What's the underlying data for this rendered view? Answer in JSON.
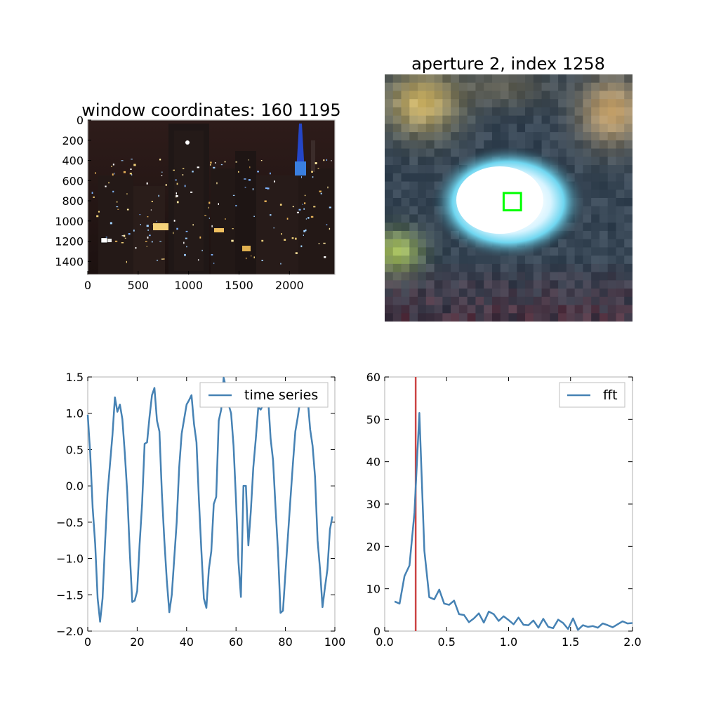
{
  "colors": {
    "line": "#4682b4",
    "marker_line": "#cc4444",
    "aperture_box": "#00ff00",
    "axes_frame": "#bfbfbf"
  },
  "chart_data": [
    {
      "type": "image",
      "title": "window coordinates: 160 1195",
      "xlim": [
        0,
        2450
      ],
      "ylim": [
        1530,
        0
      ],
      "xticks": [
        0,
        500,
        1000,
        1500,
        2000
      ],
      "yticks": [
        0,
        200,
        400,
        600,
        800,
        1000,
        1200,
        1400
      ],
      "marker": {
        "x": 160,
        "y": 1195
      }
    },
    {
      "type": "image",
      "title": "aperture 2, index 1258",
      "aperture_box": {
        "x": 0.48,
        "y": 0.48,
        "w": 0.07,
        "h": 0.07
      }
    },
    {
      "type": "line",
      "xlim": [
        0,
        100
      ],
      "ylim": [
        -2.0,
        1.5
      ],
      "xticks": [
        0,
        20,
        40,
        60,
        80,
        100
      ],
      "yticks": [
        -2.0,
        -1.5,
        -1.0,
        -0.5,
        0.0,
        0.5,
        1.0,
        1.5
      ],
      "tick_labels_x": [
        "0",
        "20",
        "40",
        "60",
        "80",
        "100"
      ],
      "tick_labels_y": [
        "−2.0",
        "−1.5",
        "−1.0",
        "−0.5",
        "0.0",
        "0.5",
        "1.0",
        "1.5"
      ],
      "legend": "upper-right",
      "series": [
        {
          "name": "time series",
          "x": [
            0,
            1,
            2,
            3,
            4,
            5,
            6,
            7,
            8,
            9,
            10,
            11,
            12,
            13,
            14,
            15,
            16,
            17,
            18,
            19,
            20,
            21,
            22,
            23,
            24,
            25,
            26,
            27,
            28,
            29,
            30,
            31,
            32,
            33,
            34,
            35,
            36,
            37,
            38,
            39,
            40,
            41,
            42,
            43,
            44,
            45,
            46,
            47,
            48,
            49,
            50,
            51,
            52,
            53,
            54,
            55,
            56,
            57,
            58,
            59,
            60,
            61,
            62,
            63,
            64,
            65,
            66,
            67,
            68,
            69,
            70,
            71,
            72,
            73,
            74,
            75,
            76,
            77,
            78,
            79,
            80,
            81,
            82,
            83,
            84,
            85,
            86,
            87,
            88,
            89,
            90,
            91,
            92,
            93,
            94,
            95,
            96,
            97,
            98,
            99
          ],
          "y": [
            0.98,
            0.45,
            -0.3,
            -0.8,
            -1.55,
            -1.87,
            -1.55,
            -0.8,
            -0.1,
            0.3,
            0.7,
            1.22,
            1.02,
            1.12,
            0.92,
            0.45,
            -0.1,
            -0.9,
            -1.6,
            -1.58,
            -1.45,
            -0.8,
            -0.25,
            0.58,
            0.6,
            0.95,
            1.25,
            1.35,
            0.9,
            0.75,
            -0.1,
            -0.75,
            -1.3,
            -1.74,
            -1.5,
            -1.0,
            -0.5,
            0.25,
            0.72,
            0.92,
            1.12,
            1.18,
            1.25,
            0.85,
            0.6,
            -0.2,
            -0.9,
            -1.55,
            -1.68,
            -1.15,
            -0.9,
            -0.25,
            -0.15,
            0.9,
            1.05,
            1.49,
            1.35,
            1.12,
            1.0,
            0.55,
            -0.2,
            -1.05,
            -1.53,
            0.0,
            0.0,
            -0.82,
            -0.35,
            0.25,
            0.65,
            1.08,
            1.05,
            1.12,
            1.18,
            1.2,
            0.65,
            0.35,
            -0.3,
            -0.9,
            -1.75,
            -1.72,
            -1.2,
            -0.7,
            -0.2,
            0.3,
            0.75,
            0.95,
            1.18,
            1.25,
            1.23,
            1.2,
            0.78,
            0.55,
            0.12,
            -0.75,
            -1.15,
            -1.67,
            -1.4,
            -1.15,
            -0.6,
            -0.42
          ]
        }
      ]
    },
    {
      "type": "line",
      "xlim": [
        0,
        2.0
      ],
      "ylim": [
        0,
        60
      ],
      "xticks": [
        0.0,
        0.5,
        1.0,
        1.5,
        2.0
      ],
      "yticks": [
        0,
        10,
        20,
        30,
        40,
        50,
        60
      ],
      "tick_labels_x": [
        "0.0",
        "0.5",
        "1.0",
        "1.5",
        "2.0"
      ],
      "tick_labels_y": [
        "0",
        "10",
        "20",
        "30",
        "40",
        "50",
        "60"
      ],
      "vline_x": 0.25,
      "legend": "upper-right",
      "series": [
        {
          "name": "fft",
          "x": [
            0.08,
            0.12,
            0.16,
            0.2,
            0.24,
            0.28,
            0.32,
            0.36,
            0.4,
            0.44,
            0.48,
            0.52,
            0.56,
            0.6,
            0.64,
            0.68,
            0.72,
            0.76,
            0.8,
            0.84,
            0.88,
            0.92,
            0.96,
            1.0,
            1.04,
            1.08,
            1.12,
            1.16,
            1.2,
            1.24,
            1.28,
            1.32,
            1.36,
            1.4,
            1.44,
            1.48,
            1.52,
            1.56,
            1.6,
            1.64,
            1.68,
            1.72,
            1.76,
            1.8,
            1.84,
            1.88,
            1.92,
            1.96,
            2.0
          ],
          "y": [
            7.0,
            6.5,
            13.0,
            15.5,
            28.0,
            51.5,
            19.0,
            8.0,
            7.5,
            9.8,
            6.5,
            6.2,
            7.2,
            4.0,
            3.8,
            2.1,
            3.0,
            4.2,
            2.0,
            4.6,
            4.0,
            2.4,
            3.5,
            2.6,
            1.6,
            3.2,
            1.5,
            1.4,
            2.5,
            0.8,
            2.9,
            1.0,
            0.7,
            2.7,
            1.9,
            0.5,
            3.0,
            0.3,
            1.4,
            1.0,
            1.2,
            0.8,
            1.8,
            1.4,
            0.9,
            1.6,
            2.3,
            1.8,
            1.9
          ]
        }
      ]
    }
  ]
}
